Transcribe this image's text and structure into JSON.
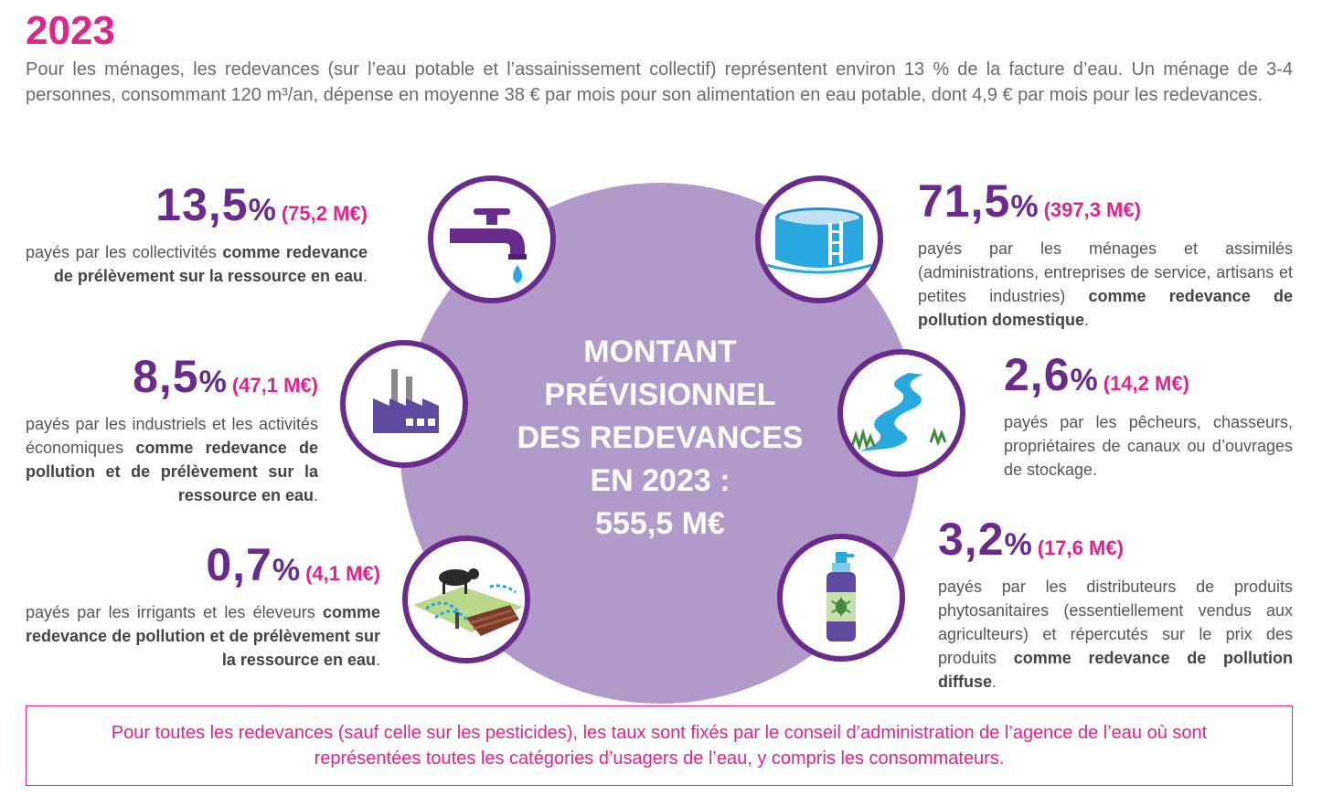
{
  "year": "2023",
  "intro": "Pour les ménages, les redevances (sur l’eau potable et l’assainissement collectif) représentent environ 13 % de la facture d’eau. Un ménage de 3-4 personnes, consommant 120 m³/an, dépense en moyenne 38 € par mois pour son alimentation en eau potable, dont 4,9 € par mois pour les redevances.",
  "center": {
    "line1": "MONTANT",
    "line2": "PRÉVISIONNEL",
    "line3": "DES REDEVANCES",
    "line4": "EN 2023 :",
    "line5": "555,5 M€"
  },
  "items": {
    "collectivites": {
      "icon": "water-tap-icon",
      "percent": "13,5",
      "amount": "(75,2 M€)",
      "desc": "payés par les collectivités ",
      "bold": "comme redevance de prélèvement sur la ressource en eau",
      "end": "."
    },
    "industriels": {
      "icon": "factory-icon",
      "percent": "8,5",
      "amount": "(47,1 M€)",
      "desc": "payés par les industriels et les activités économiques ",
      "bold": "comme redevance de pollution et de prélèvement sur la ressource en eau",
      "end": "."
    },
    "irrigants": {
      "icon": "farm-irrigation-icon",
      "percent": "0,7",
      "amount": "(4,1 M€)",
      "desc": "payés par les irrigants et les éleveurs ",
      "bold": "comme redevance de pollution et de prélèvement sur la ressource en eau",
      "end": "."
    },
    "menages": {
      "icon": "water-tank-icon",
      "percent": "71,5",
      "amount": "(397,3 M€)",
      "desc": "payés par les ménages et assimilés (administrations, entreprises de service, artisans et petites industries) ",
      "bold": "comme redevance de pollution domestique",
      "end": "."
    },
    "pecheurs": {
      "icon": "river-icon",
      "percent": "2,6",
      "amount": "(14,2 M€)",
      "desc": "payés par les pêcheurs, chasseurs, propriétaires de canaux ou d’ouvrages de stockage.",
      "bold": "",
      "end": ""
    },
    "distributeurs": {
      "icon": "pesticide-spray-icon",
      "percent": "3,2",
      "amount": "(17,6 M€)",
      "desc": "payés par les distributeurs de produits phytosanitaires (essentiellement vendus aux agriculteurs) et répercutés sur le prix des produits ",
      "bold": "comme redevance de pollution diffuse",
      "end": "."
    }
  },
  "percent_symbol": "%",
  "note": "Pour toutes les redevances (sauf celle sur les pesticides), les taux sont fixés par le conseil d’administration de l’agence de l’eau où sont représentées toutes les catégories d’usagers de l’eau, y compris les consommateurs.",
  "colors": {
    "accent_magenta": "#e0248c",
    "purple_dark": "#6a2c8c",
    "circle_lilac": "#b19ac9",
    "water_blue": "#29a8e0"
  }
}
